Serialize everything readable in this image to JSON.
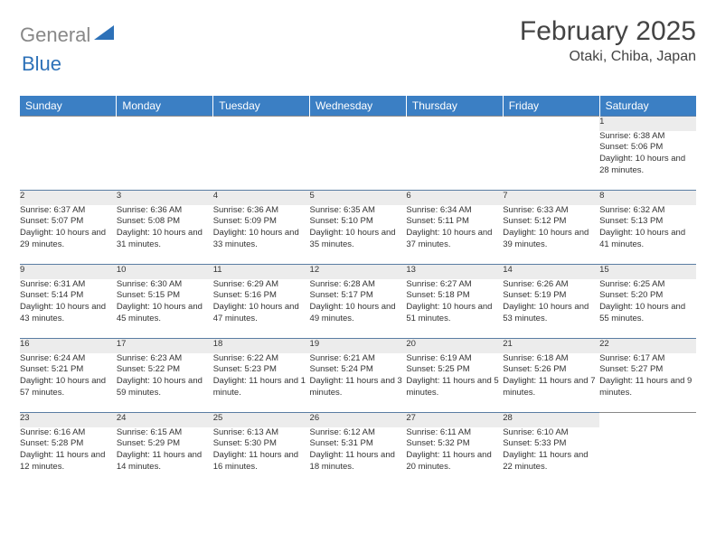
{
  "logo": {
    "gray": "General",
    "blue": "Blue"
  },
  "title": "February 2025",
  "location": "Otaki, Chiba, Japan",
  "colors": {
    "header_bg": "#3b7fc4",
    "daynum_bg": "#ececec",
    "row_border": "#5a7da3",
    "logo_blue": "#2d71b8",
    "logo_gray": "#888888"
  },
  "day_headers": [
    "Sunday",
    "Monday",
    "Tuesday",
    "Wednesday",
    "Thursday",
    "Friday",
    "Saturday"
  ],
  "weeks": [
    {
      "nums": [
        "",
        "",
        "",
        "",
        "",
        "",
        "1"
      ],
      "cells": [
        "",
        "",
        "",
        "",
        "",
        "",
        "Sunrise: 6:38 AM\nSunset: 5:06 PM\nDaylight: 10 hours and 28 minutes."
      ]
    },
    {
      "nums": [
        "2",
        "3",
        "4",
        "5",
        "6",
        "7",
        "8"
      ],
      "cells": [
        "Sunrise: 6:37 AM\nSunset: 5:07 PM\nDaylight: 10 hours and 29 minutes.",
        "Sunrise: 6:36 AM\nSunset: 5:08 PM\nDaylight: 10 hours and 31 minutes.",
        "Sunrise: 6:36 AM\nSunset: 5:09 PM\nDaylight: 10 hours and 33 minutes.",
        "Sunrise: 6:35 AM\nSunset: 5:10 PM\nDaylight: 10 hours and 35 minutes.",
        "Sunrise: 6:34 AM\nSunset: 5:11 PM\nDaylight: 10 hours and 37 minutes.",
        "Sunrise: 6:33 AM\nSunset: 5:12 PM\nDaylight: 10 hours and 39 minutes.",
        "Sunrise: 6:32 AM\nSunset: 5:13 PM\nDaylight: 10 hours and 41 minutes."
      ]
    },
    {
      "nums": [
        "9",
        "10",
        "11",
        "12",
        "13",
        "14",
        "15"
      ],
      "cells": [
        "Sunrise: 6:31 AM\nSunset: 5:14 PM\nDaylight: 10 hours and 43 minutes.",
        "Sunrise: 6:30 AM\nSunset: 5:15 PM\nDaylight: 10 hours and 45 minutes.",
        "Sunrise: 6:29 AM\nSunset: 5:16 PM\nDaylight: 10 hours and 47 minutes.",
        "Sunrise: 6:28 AM\nSunset: 5:17 PM\nDaylight: 10 hours and 49 minutes.",
        "Sunrise: 6:27 AM\nSunset: 5:18 PM\nDaylight: 10 hours and 51 minutes.",
        "Sunrise: 6:26 AM\nSunset: 5:19 PM\nDaylight: 10 hours and 53 minutes.",
        "Sunrise: 6:25 AM\nSunset: 5:20 PM\nDaylight: 10 hours and 55 minutes."
      ]
    },
    {
      "nums": [
        "16",
        "17",
        "18",
        "19",
        "20",
        "21",
        "22"
      ],
      "cells": [
        "Sunrise: 6:24 AM\nSunset: 5:21 PM\nDaylight: 10 hours and 57 minutes.",
        "Sunrise: 6:23 AM\nSunset: 5:22 PM\nDaylight: 10 hours and 59 minutes.",
        "Sunrise: 6:22 AM\nSunset: 5:23 PM\nDaylight: 11 hours and 1 minute.",
        "Sunrise: 6:21 AM\nSunset: 5:24 PM\nDaylight: 11 hours and 3 minutes.",
        "Sunrise: 6:19 AM\nSunset: 5:25 PM\nDaylight: 11 hours and 5 minutes.",
        "Sunrise: 6:18 AM\nSunset: 5:26 PM\nDaylight: 11 hours and 7 minutes.",
        "Sunrise: 6:17 AM\nSunset: 5:27 PM\nDaylight: 11 hours and 9 minutes."
      ]
    },
    {
      "nums": [
        "23",
        "24",
        "25",
        "26",
        "27",
        "28",
        ""
      ],
      "cells": [
        "Sunrise: 6:16 AM\nSunset: 5:28 PM\nDaylight: 11 hours and 12 minutes.",
        "Sunrise: 6:15 AM\nSunset: 5:29 PM\nDaylight: 11 hours and 14 minutes.",
        "Sunrise: 6:13 AM\nSunset: 5:30 PM\nDaylight: 11 hours and 16 minutes.",
        "Sunrise: 6:12 AM\nSunset: 5:31 PM\nDaylight: 11 hours and 18 minutes.",
        "Sunrise: 6:11 AM\nSunset: 5:32 PM\nDaylight: 11 hours and 20 minutes.",
        "Sunrise: 6:10 AM\nSunset: 5:33 PM\nDaylight: 11 hours and 22 minutes.",
        ""
      ]
    }
  ]
}
